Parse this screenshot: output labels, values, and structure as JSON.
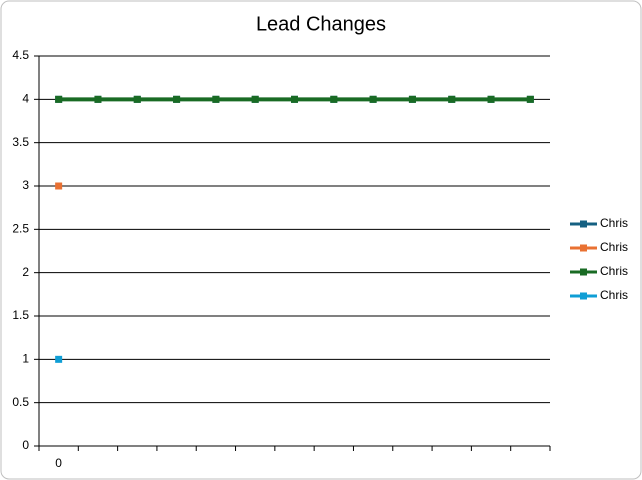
{
  "chart_data": {
    "type": "line",
    "title": "Lead Changes",
    "categories": [
      "0",
      null,
      null,
      null,
      null,
      null,
      null,
      null,
      null,
      null,
      null,
      null,
      null
    ],
    "series": [
      {
        "name": "Chris",
        "color": "#156082",
        "values": [
          4,
          4,
          4,
          4,
          4,
          4,
          4,
          4,
          4,
          4,
          4,
          4,
          4
        ]
      },
      {
        "name": "Chris",
        "color": "#e97132",
        "values": [
          3,
          null,
          null,
          null,
          null,
          null,
          null,
          null,
          null,
          null,
          null,
          null,
          null
        ]
      },
      {
        "name": "Chris",
        "color": "#196b24",
        "values": [
          4,
          4,
          4,
          4,
          4,
          4,
          4,
          4,
          4,
          4,
          4,
          4,
          4
        ]
      },
      {
        "name": "Chris",
        "color": "#0f9ed5",
        "values": [
          1,
          null,
          null,
          null,
          null,
          null,
          null,
          null,
          null,
          null,
          null,
          null,
          null
        ]
      }
    ],
    "ylim": [
      0,
      4.5
    ],
    "yticks": [
      0,
      0.5,
      1,
      1.5,
      2,
      2.5,
      3,
      3.5,
      4,
      4.5
    ],
    "grid": true,
    "legend": "right"
  }
}
